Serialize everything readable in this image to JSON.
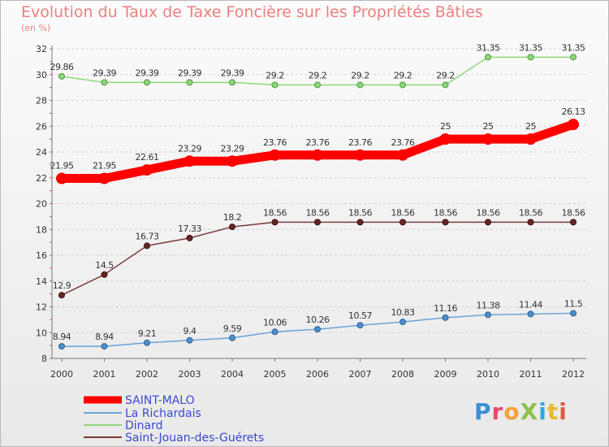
{
  "header": {
    "title": "Evolution du Taux de Taxe Foncière sur les Propriétés Bâties",
    "subtitle": "(en %)"
  },
  "logo": {
    "text": "ProXiti",
    "letters": [
      {
        "ch": "P",
        "color": "#3a8fd8"
      },
      {
        "ch": "r",
        "color": "#e84a6f"
      },
      {
        "ch": "o",
        "color": "#f3a23a"
      },
      {
        "ch": "X",
        "color": "#8bc34a"
      },
      {
        "ch": "i",
        "color": "#2ea7de"
      },
      {
        "ch": "t",
        "color": "#e8b82e"
      },
      {
        "ch": "i",
        "color": "#e8563a"
      }
    ]
  },
  "chart_data": {
    "type": "line",
    "title": "Evolution du Taux de Taxe Foncière sur les Propriétés Bâties",
    "ylabel": "(en %)",
    "xlabel": "",
    "x": [
      "2000",
      "2001",
      "2002",
      "2003",
      "2004",
      "2005",
      "2006",
      "2007",
      "2008",
      "2009",
      "2010",
      "2011",
      "2012"
    ],
    "ylim": [
      8,
      32
    ],
    "yticks": [
      "8",
      "10",
      "12",
      "14",
      "16",
      "18",
      "20",
      "22",
      "24",
      "26",
      "28",
      "30",
      "32"
    ],
    "grid": "horizontal dashed",
    "legend_position": "bottom-left",
    "series": [
      {
        "name": "SAINT-MALO",
        "color": "#ff0000",
        "values": [
          21.95,
          21.95,
          22.61,
          23.29,
          23.29,
          23.76,
          23.76,
          23.76,
          23.76,
          25,
          25,
          25,
          26.13
        ],
        "labels": [
          "21.95",
          "21.95",
          "22.61",
          "23.29",
          "23.29",
          "23.76",
          "23.76",
          "23.76",
          "23.76",
          "25",
          "25",
          "25",
          "26.13"
        ]
      },
      {
        "name": "La Richardais",
        "color": "#6aa3d8",
        "values": [
          8.94,
          8.94,
          9.21,
          9.4,
          9.59,
          10.06,
          10.26,
          10.57,
          10.83,
          11.16,
          11.38,
          11.44,
          11.5
        ],
        "labels": [
          "8.94",
          "8.94",
          "9.21",
          "9.4",
          "9.59",
          "10.06",
          "10.26",
          "10.57",
          "10.83",
          "11.16",
          "11.38",
          "11.44",
          "11.5"
        ]
      },
      {
        "name": "Dinard",
        "color": "#8fd67a",
        "values": [
          29.86,
          29.39,
          29.39,
          29.39,
          29.39,
          29.2,
          29.2,
          29.2,
          29.2,
          29.2,
          31.35,
          31.35,
          31.35
        ],
        "labels": [
          "29.86",
          "29.39",
          "29.39",
          "29.39",
          "29.39",
          "29.2",
          "29.2",
          "29.2",
          "29.2",
          "29.2",
          "31.35",
          "31.35",
          "31.35"
        ]
      },
      {
        "name": "Saint-Jouan-des-Guérets",
        "color": "#7a3a3a",
        "values": [
          12.9,
          14.5,
          16.73,
          17.33,
          18.2,
          18.56,
          18.56,
          18.56,
          18.56,
          18.56,
          18.56,
          18.56,
          18.56
        ],
        "labels": [
          "12.9",
          "14.5",
          "16.73",
          "17.33",
          "18.2",
          "18.56",
          "18.56",
          "18.56",
          "18.56",
          "18.56",
          "18.56",
          "18.56",
          "18.56"
        ]
      }
    ]
  }
}
